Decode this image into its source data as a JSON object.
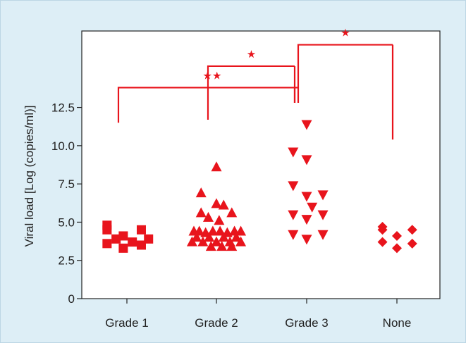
{
  "chart_data": {
    "type": "scatter",
    "title": "",
    "xlabel": "",
    "ylabel": "Viral load [Log (copies/ml)]",
    "categories": [
      "Grade 1",
      "Grade 2",
      "Grade 3",
      "None"
    ],
    "yticks": [
      "0",
      "2.5",
      "5.0",
      "7.5",
      "10.0",
      "12.5"
    ],
    "ytick_values": [
      0,
      2.5,
      5.0,
      7.5,
      10.0,
      12.5
    ],
    "ylim": [
      0,
      17.5
    ],
    "grid": false,
    "legend": "none",
    "marker_color": "#e8141c",
    "series": [
      {
        "category": "Grade 1",
        "marker": "square",
        "points": [
          {
            "x": -0.22,
            "y": 4.8
          },
          {
            "x": -0.22,
            "y": 4.5
          },
          {
            "x": -0.12,
            "y": 3.9
          },
          {
            "x": -0.22,
            "y": 3.6
          },
          {
            "x": -0.04,
            "y": 4.1
          },
          {
            "x": -0.04,
            "y": 3.3
          },
          {
            "x": 0.06,
            "y": 3.7
          },
          {
            "x": 0.16,
            "y": 3.5
          },
          {
            "x": 0.16,
            "y": 4.5
          },
          {
            "x": 0.24,
            "y": 3.9
          }
        ]
      },
      {
        "category": "Grade 2",
        "marker": "triangle-up",
        "points": [
          {
            "x": 0.0,
            "y": 8.6
          },
          {
            "x": -0.17,
            "y": 6.9
          },
          {
            "x": 0.0,
            "y": 6.2
          },
          {
            "x": 0.08,
            "y": 6.1
          },
          {
            "x": -0.17,
            "y": 5.6
          },
          {
            "x": 0.17,
            "y": 5.6
          },
          {
            "x": -0.09,
            "y": 5.3
          },
          {
            "x": 0.03,
            "y": 5.1
          },
          {
            "x": -0.25,
            "y": 4.4
          },
          {
            "x": -0.19,
            "y": 4.4
          },
          {
            "x": -0.12,
            "y": 4.3
          },
          {
            "x": -0.04,
            "y": 4.4
          },
          {
            "x": 0.04,
            "y": 4.4
          },
          {
            "x": 0.12,
            "y": 4.3
          },
          {
            "x": 0.2,
            "y": 4.4
          },
          {
            "x": 0.27,
            "y": 4.4
          },
          {
            "x": -0.22,
            "y": 4.0
          },
          {
            "x": -0.08,
            "y": 4.0
          },
          {
            "x": 0.08,
            "y": 4.0
          },
          {
            "x": 0.22,
            "y": 4.0
          },
          {
            "x": -0.27,
            "y": 3.7
          },
          {
            "x": -0.15,
            "y": 3.7
          },
          {
            "x": 0.0,
            "y": 3.7
          },
          {
            "x": 0.15,
            "y": 3.7
          },
          {
            "x": 0.27,
            "y": 3.7
          },
          {
            "x": -0.06,
            "y": 3.4
          },
          {
            "x": 0.06,
            "y": 3.4
          },
          {
            "x": 0.17,
            "y": 3.4
          }
        ]
      },
      {
        "category": "Grade 3",
        "marker": "triangle-down",
        "points": [
          {
            "x": 0.0,
            "y": 11.4
          },
          {
            "x": -0.15,
            "y": 9.6
          },
          {
            "x": 0.0,
            "y": 9.1
          },
          {
            "x": -0.15,
            "y": 7.4
          },
          {
            "x": -0.15,
            "y": 5.5
          },
          {
            "x": 0.0,
            "y": 6.7
          },
          {
            "x": 0.18,
            "y": 6.8
          },
          {
            "x": 0.06,
            "y": 6.0
          },
          {
            "x": 0.18,
            "y": 5.5
          },
          {
            "x": 0.0,
            "y": 5.2
          },
          {
            "x": -0.15,
            "y": 4.2
          },
          {
            "x": 0.0,
            "y": 3.9
          },
          {
            "x": 0.18,
            "y": 4.2
          }
        ]
      },
      {
        "category": "None",
        "marker": "diamond",
        "points": [
          {
            "x": -0.16,
            "y": 4.7
          },
          {
            "x": -0.16,
            "y": 4.5
          },
          {
            "x": 0.0,
            "y": 4.1
          },
          {
            "x": 0.17,
            "y": 4.5
          },
          {
            "x": -0.16,
            "y": 3.7
          },
          {
            "x": 0.17,
            "y": 3.6
          },
          {
            "x": 0.0,
            "y": 3.3
          }
        ]
      }
    ],
    "significance": [
      {
        "label": "★★",
        "from": "Grade 1",
        "to": "Grade 3",
        "y": 13.8,
        "left_drop": 11.5,
        "right_drop": 12.8
      },
      {
        "label": "★",
        "from": "Grade 2",
        "to": "Grade 3",
        "y": 15.2,
        "left_drop": 11.7,
        "right_drop": 12.8
      },
      {
        "label": "★",
        "from": "Grade 3",
        "to": "None",
        "y": 16.6,
        "left_drop": 12.8,
        "right_drop": 10.4
      }
    ]
  }
}
